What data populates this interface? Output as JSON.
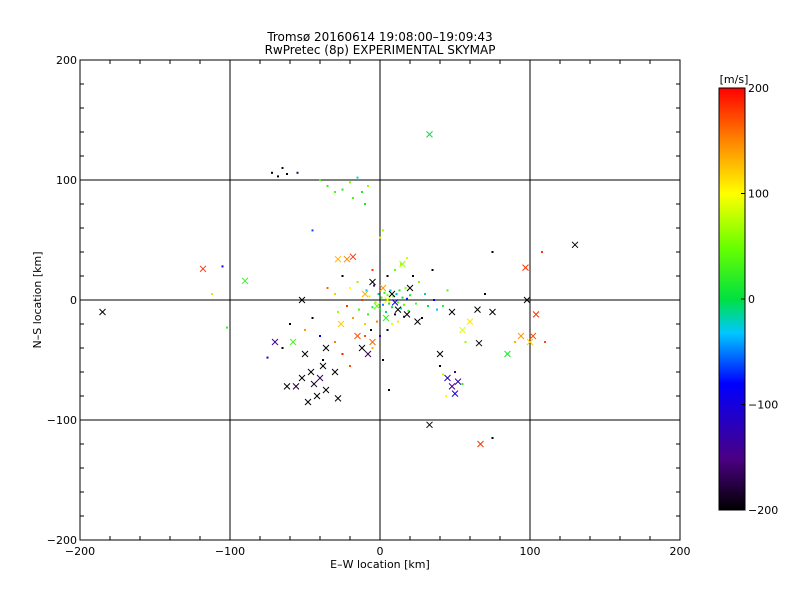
{
  "chart_data": {
    "type": "scatter",
    "title": "Tromsø 20160614 19:08:00–19:09:43",
    "subtitle": "RwPretec (8p) EXPERIMENTAL SKYMAP",
    "xlabel": "E–W location [km]",
    "ylabel": "N–S location [km]",
    "xlim": [
      -200,
      200
    ],
    "ylim": [
      -200,
      200
    ],
    "x_ticks": [
      "−200",
      "−100",
      "0",
      "100",
      "200"
    ],
    "y_ticks": [
      "−200",
      "−100",
      "0",
      "100",
      "200"
    ],
    "grid": true,
    "colorbar": {
      "label": "[m/s]",
      "range": [
        -200,
        200
      ],
      "ticks": [
        "200",
        "100",
        "0",
        "−100",
        "−200"
      ],
      "colormap": "rainbow (black-purple-blue-cyan-green-yellow-red)"
    },
    "cross_points": [
      {
        "x": -185,
        "y": -10,
        "v": -200
      },
      {
        "x": -118,
        "y": 26,
        "v": 180
      },
      {
        "x": -90,
        "y": 16,
        "v": 20
      },
      {
        "x": -52,
        "y": 0,
        "v": -200
      },
      {
        "x": -46,
        "y": -60,
        "v": -200
      },
      {
        "x": -44,
        "y": -70,
        "v": -190
      },
      {
        "x": -42,
        "y": -80,
        "v": -200
      },
      {
        "x": -40,
        "y": -65,
        "v": -180
      },
      {
        "x": -38,
        "y": -55,
        "v": -200
      },
      {
        "x": -36,
        "y": -75,
        "v": -200
      },
      {
        "x": -52,
        "y": -65,
        "v": -200
      },
      {
        "x": -48,
        "y": -85,
        "v": -200
      },
      {
        "x": -56,
        "y": -72,
        "v": -190
      },
      {
        "x": -30,
        "y": -60,
        "v": -200
      },
      {
        "x": -28,
        "y": -82,
        "v": -200
      },
      {
        "x": -62,
        "y": -72,
        "v": -200
      },
      {
        "x": -50,
        "y": -45,
        "v": -200
      },
      {
        "x": -58,
        "y": -35,
        "v": 30
      },
      {
        "x": -70,
        "y": -35,
        "v": -160
      },
      {
        "x": -36,
        "y": -40,
        "v": -200
      },
      {
        "x": -18,
        "y": 36,
        "v": 180
      },
      {
        "x": -22,
        "y": 34,
        "v": 150
      },
      {
        "x": -28,
        "y": 34,
        "v": 130
      },
      {
        "x": -26,
        "y": -20,
        "v": 120
      },
      {
        "x": -15,
        "y": -30,
        "v": 170
      },
      {
        "x": -12,
        "y": -40,
        "v": -200
      },
      {
        "x": -8,
        "y": -45,
        "v": -180
      },
      {
        "x": -5,
        "y": -35,
        "v": 160
      },
      {
        "x": -10,
        "y": 5,
        "v": 130
      },
      {
        "x": -5,
        "y": 15,
        "v": -200
      },
      {
        "x": 2,
        "y": 10,
        "v": 140
      },
      {
        "x": 8,
        "y": 5,
        "v": -200
      },
      {
        "x": 12,
        "y": -8,
        "v": -200
      },
      {
        "x": 18,
        "y": -12,
        "v": -200
      },
      {
        "x": 25,
        "y": -18,
        "v": -200
      },
      {
        "x": 4,
        "y": -15,
        "v": 20
      },
      {
        "x": 15,
        "y": 30,
        "v": 60
      },
      {
        "x": 33,
        "y": 138,
        "v": 0
      },
      {
        "x": 33,
        "y": -104,
        "v": -200
      },
      {
        "x": 40,
        "y": -45,
        "v": -200
      },
      {
        "x": 45,
        "y": -65,
        "v": -140
      },
      {
        "x": 48,
        "y": -72,
        "v": -160
      },
      {
        "x": 50,
        "y": -78,
        "v": -120
      },
      {
        "x": 52,
        "y": -68,
        "v": -150
      },
      {
        "x": 48,
        "y": -10,
        "v": -200
      },
      {
        "x": 55,
        "y": -25,
        "v": 90
      },
      {
        "x": 60,
        "y": -18,
        "v": 110
      },
      {
        "x": 65,
        "y": -8,
        "v": -200
      },
      {
        "x": 66,
        "y": -36,
        "v": -200
      },
      {
        "x": 67,
        "y": -120,
        "v": 180
      },
      {
        "x": 75,
        "y": -10,
        "v": -200
      },
      {
        "x": 85,
        "y": -45,
        "v": 10
      },
      {
        "x": 94,
        "y": -30,
        "v": 140
      },
      {
        "x": 98,
        "y": 0,
        "v": -200
      },
      {
        "x": 97,
        "y": 27,
        "v": 180
      },
      {
        "x": 100,
        "y": -35,
        "v": 120
      },
      {
        "x": 102,
        "y": -30,
        "v": 170
      },
      {
        "x": 104,
        "y": -12,
        "v": 180
      },
      {
        "x": 130,
        "y": 46,
        "v": -200
      },
      {
        "x": 20,
        "y": 10,
        "v": -200
      },
      {
        "x": -2,
        "y": -5,
        "v": 40
      },
      {
        "x": 5,
        "y": 0,
        "v": 90
      },
      {
        "x": 10,
        "y": -2,
        "v": -120
      }
    ],
    "dot_points": [
      {
        "x": -72,
        "y": 106,
        "v": -200
      },
      {
        "x": -68,
        "y": 103,
        "v": -200
      },
      {
        "x": -65,
        "y": 110,
        "v": -190
      },
      {
        "x": -62,
        "y": 105,
        "v": -200
      },
      {
        "x": -55,
        "y": 106,
        "v": -180
      },
      {
        "x": -40,
        "y": 100,
        "v": 30
      },
      {
        "x": -35,
        "y": 95,
        "v": 20
      },
      {
        "x": -30,
        "y": 90,
        "v": 30
      },
      {
        "x": -25,
        "y": 92,
        "v": 10
      },
      {
        "x": -20,
        "y": 98,
        "v": 40
      },
      {
        "x": -15,
        "y": 102,
        "v": -30
      },
      {
        "x": -12,
        "y": 90,
        "v": 10
      },
      {
        "x": -8,
        "y": 95,
        "v": 60
      },
      {
        "x": -18,
        "y": 85,
        "v": 30
      },
      {
        "x": -45,
        "y": 58,
        "v": -80
      },
      {
        "x": -10,
        "y": 80,
        "v": 10
      },
      {
        "x": 2,
        "y": 58,
        "v": 60
      },
      {
        "x": 0,
        "y": 52,
        "v": 90
      },
      {
        "x": 75,
        "y": 40,
        "v": -200
      },
      {
        "x": 108,
        "y": 40,
        "v": 180
      },
      {
        "x": -105,
        "y": 28,
        "v": -100
      },
      {
        "x": -112,
        "y": 5,
        "v": 70
      },
      {
        "x": -102,
        "y": -23,
        "v": 20
      },
      {
        "x": -75,
        "y": -48,
        "v": -120
      },
      {
        "x": -65,
        "y": -40,
        "v": -200
      },
      {
        "x": -60,
        "y": -20,
        "v": -200
      },
      {
        "x": -50,
        "y": -25,
        "v": 140
      },
      {
        "x": -45,
        "y": -15,
        "v": -200
      },
      {
        "x": -40,
        "y": -30,
        "v": -100
      },
      {
        "x": -38,
        "y": -50,
        "v": -200
      },
      {
        "x": -35,
        "y": 10,
        "v": 160
      },
      {
        "x": -30,
        "y": 5,
        "v": 120
      },
      {
        "x": -28,
        "y": -10,
        "v": 60
      },
      {
        "x": -25,
        "y": 20,
        "v": -200
      },
      {
        "x": -22,
        "y": -5,
        "v": 180
      },
      {
        "x": -20,
        "y": 10,
        "v": 100
      },
      {
        "x": -18,
        "y": -15,
        "v": 140
      },
      {
        "x": -15,
        "y": 15,
        "v": 60
      },
      {
        "x": -14,
        "y": -8,
        "v": 30
      },
      {
        "x": -12,
        "y": 0,
        "v": 180
      },
      {
        "x": -10,
        "y": -20,
        "v": 120
      },
      {
        "x": -9,
        "y": 8,
        "v": -40
      },
      {
        "x": -8,
        "y": -12,
        "v": 20
      },
      {
        "x": -7,
        "y": 3,
        "v": 80
      },
      {
        "x": -6,
        "y": -25,
        "v": -200
      },
      {
        "x": -5,
        "y": -6,
        "v": 10
      },
      {
        "x": -4,
        "y": 12,
        "v": -160
      },
      {
        "x": -3,
        "y": -2,
        "v": 50
      },
      {
        "x": -2,
        "y": -18,
        "v": 150
      },
      {
        "x": -1,
        "y": 5,
        "v": -20
      },
      {
        "x": 0,
        "y": -8,
        "v": 0
      },
      {
        "x": 1,
        "y": 2,
        "v": 30
      },
      {
        "x": 2,
        "y": -4,
        "v": -60
      },
      {
        "x": 3,
        "y": 6,
        "v": 20
      },
      {
        "x": 4,
        "y": -10,
        "v": -10
      },
      {
        "x": 5,
        "y": 4,
        "v": 40
      },
      {
        "x": 6,
        "y": -3,
        "v": 10
      },
      {
        "x": 7,
        "y": 8,
        "v": -30
      },
      {
        "x": 8,
        "y": -6,
        "v": 0
      },
      {
        "x": 9,
        "y": 3,
        "v": 20
      },
      {
        "x": 10,
        "y": -12,
        "v": -200
      },
      {
        "x": 11,
        "y": 5,
        "v": -50
      },
      {
        "x": 12,
        "y": -2,
        "v": 30
      },
      {
        "x": 13,
        "y": 8,
        "v": 10
      },
      {
        "x": 14,
        "y": -7,
        "v": -20
      },
      {
        "x": 15,
        "y": 2,
        "v": 0
      },
      {
        "x": 16,
        "y": -4,
        "v": 40
      },
      {
        "x": 17,
        "y": 10,
        "v": 60
      },
      {
        "x": 18,
        "y": 1,
        "v": -90
      },
      {
        "x": 19,
        "y": -9,
        "v": 20
      },
      {
        "x": 20,
        "y": 4,
        "v": 10
      },
      {
        "x": 22,
        "y": 20,
        "v": -200
      },
      {
        "x": 24,
        "y": -3,
        "v": 30
      },
      {
        "x": 26,
        "y": 15,
        "v": 50
      },
      {
        "x": 28,
        "y": -15,
        "v": -200
      },
      {
        "x": 30,
        "y": 5,
        "v": -20
      },
      {
        "x": 32,
        "y": -5,
        "v": 0
      },
      {
        "x": 35,
        "y": 25,
        "v": -200
      },
      {
        "x": 14,
        "y": 30,
        "v": 60
      },
      {
        "x": 18,
        "y": 35,
        "v": 80
      },
      {
        "x": 10,
        "y": 25,
        "v": 40
      },
      {
        "x": 5,
        "y": 20,
        "v": -200
      },
      {
        "x": -5,
        "y": 25,
        "v": 180
      },
      {
        "x": -10,
        "y": -30,
        "v": 170
      },
      {
        "x": -5,
        "y": -40,
        "v": 130
      },
      {
        "x": 0,
        "y": -30,
        "v": -150
      },
      {
        "x": 5,
        "y": -25,
        "v": -200
      },
      {
        "x": 8,
        "y": -20,
        "v": 90
      },
      {
        "x": 12,
        "y": -18,
        "v": 110
      },
      {
        "x": 16,
        "y": -14,
        "v": -130
      },
      {
        "x": 2,
        "y": -50,
        "v": -200
      },
      {
        "x": 6,
        "y": -75,
        "v": -200
      },
      {
        "x": -20,
        "y": -55,
        "v": 170
      },
      {
        "x": -25,
        "y": -45,
        "v": 190
      },
      {
        "x": -30,
        "y": -35,
        "v": 150
      },
      {
        "x": 40,
        "y": -55,
        "v": -200
      },
      {
        "x": 42,
        "y": -62,
        "v": 70
      },
      {
        "x": 44,
        "y": -80,
        "v": 100
      },
      {
        "x": 50,
        "y": -60,
        "v": -150
      },
      {
        "x": 55,
        "y": -70,
        "v": 20
      },
      {
        "x": 57,
        "y": -35,
        "v": 60
      },
      {
        "x": 75,
        "y": -115,
        "v": -200
      },
      {
        "x": 90,
        "y": -35,
        "v": 130
      },
      {
        "x": 110,
        "y": -35,
        "v": 170
      },
      {
        "x": 42,
        "y": -5,
        "v": 20
      },
      {
        "x": 45,
        "y": 8,
        "v": 30
      },
      {
        "x": 70,
        "y": 5,
        "v": -200
      },
      {
        "x": 36,
        "y": 0,
        "v": -100
      },
      {
        "x": 38,
        "y": -8,
        "v": -40
      }
    ]
  }
}
